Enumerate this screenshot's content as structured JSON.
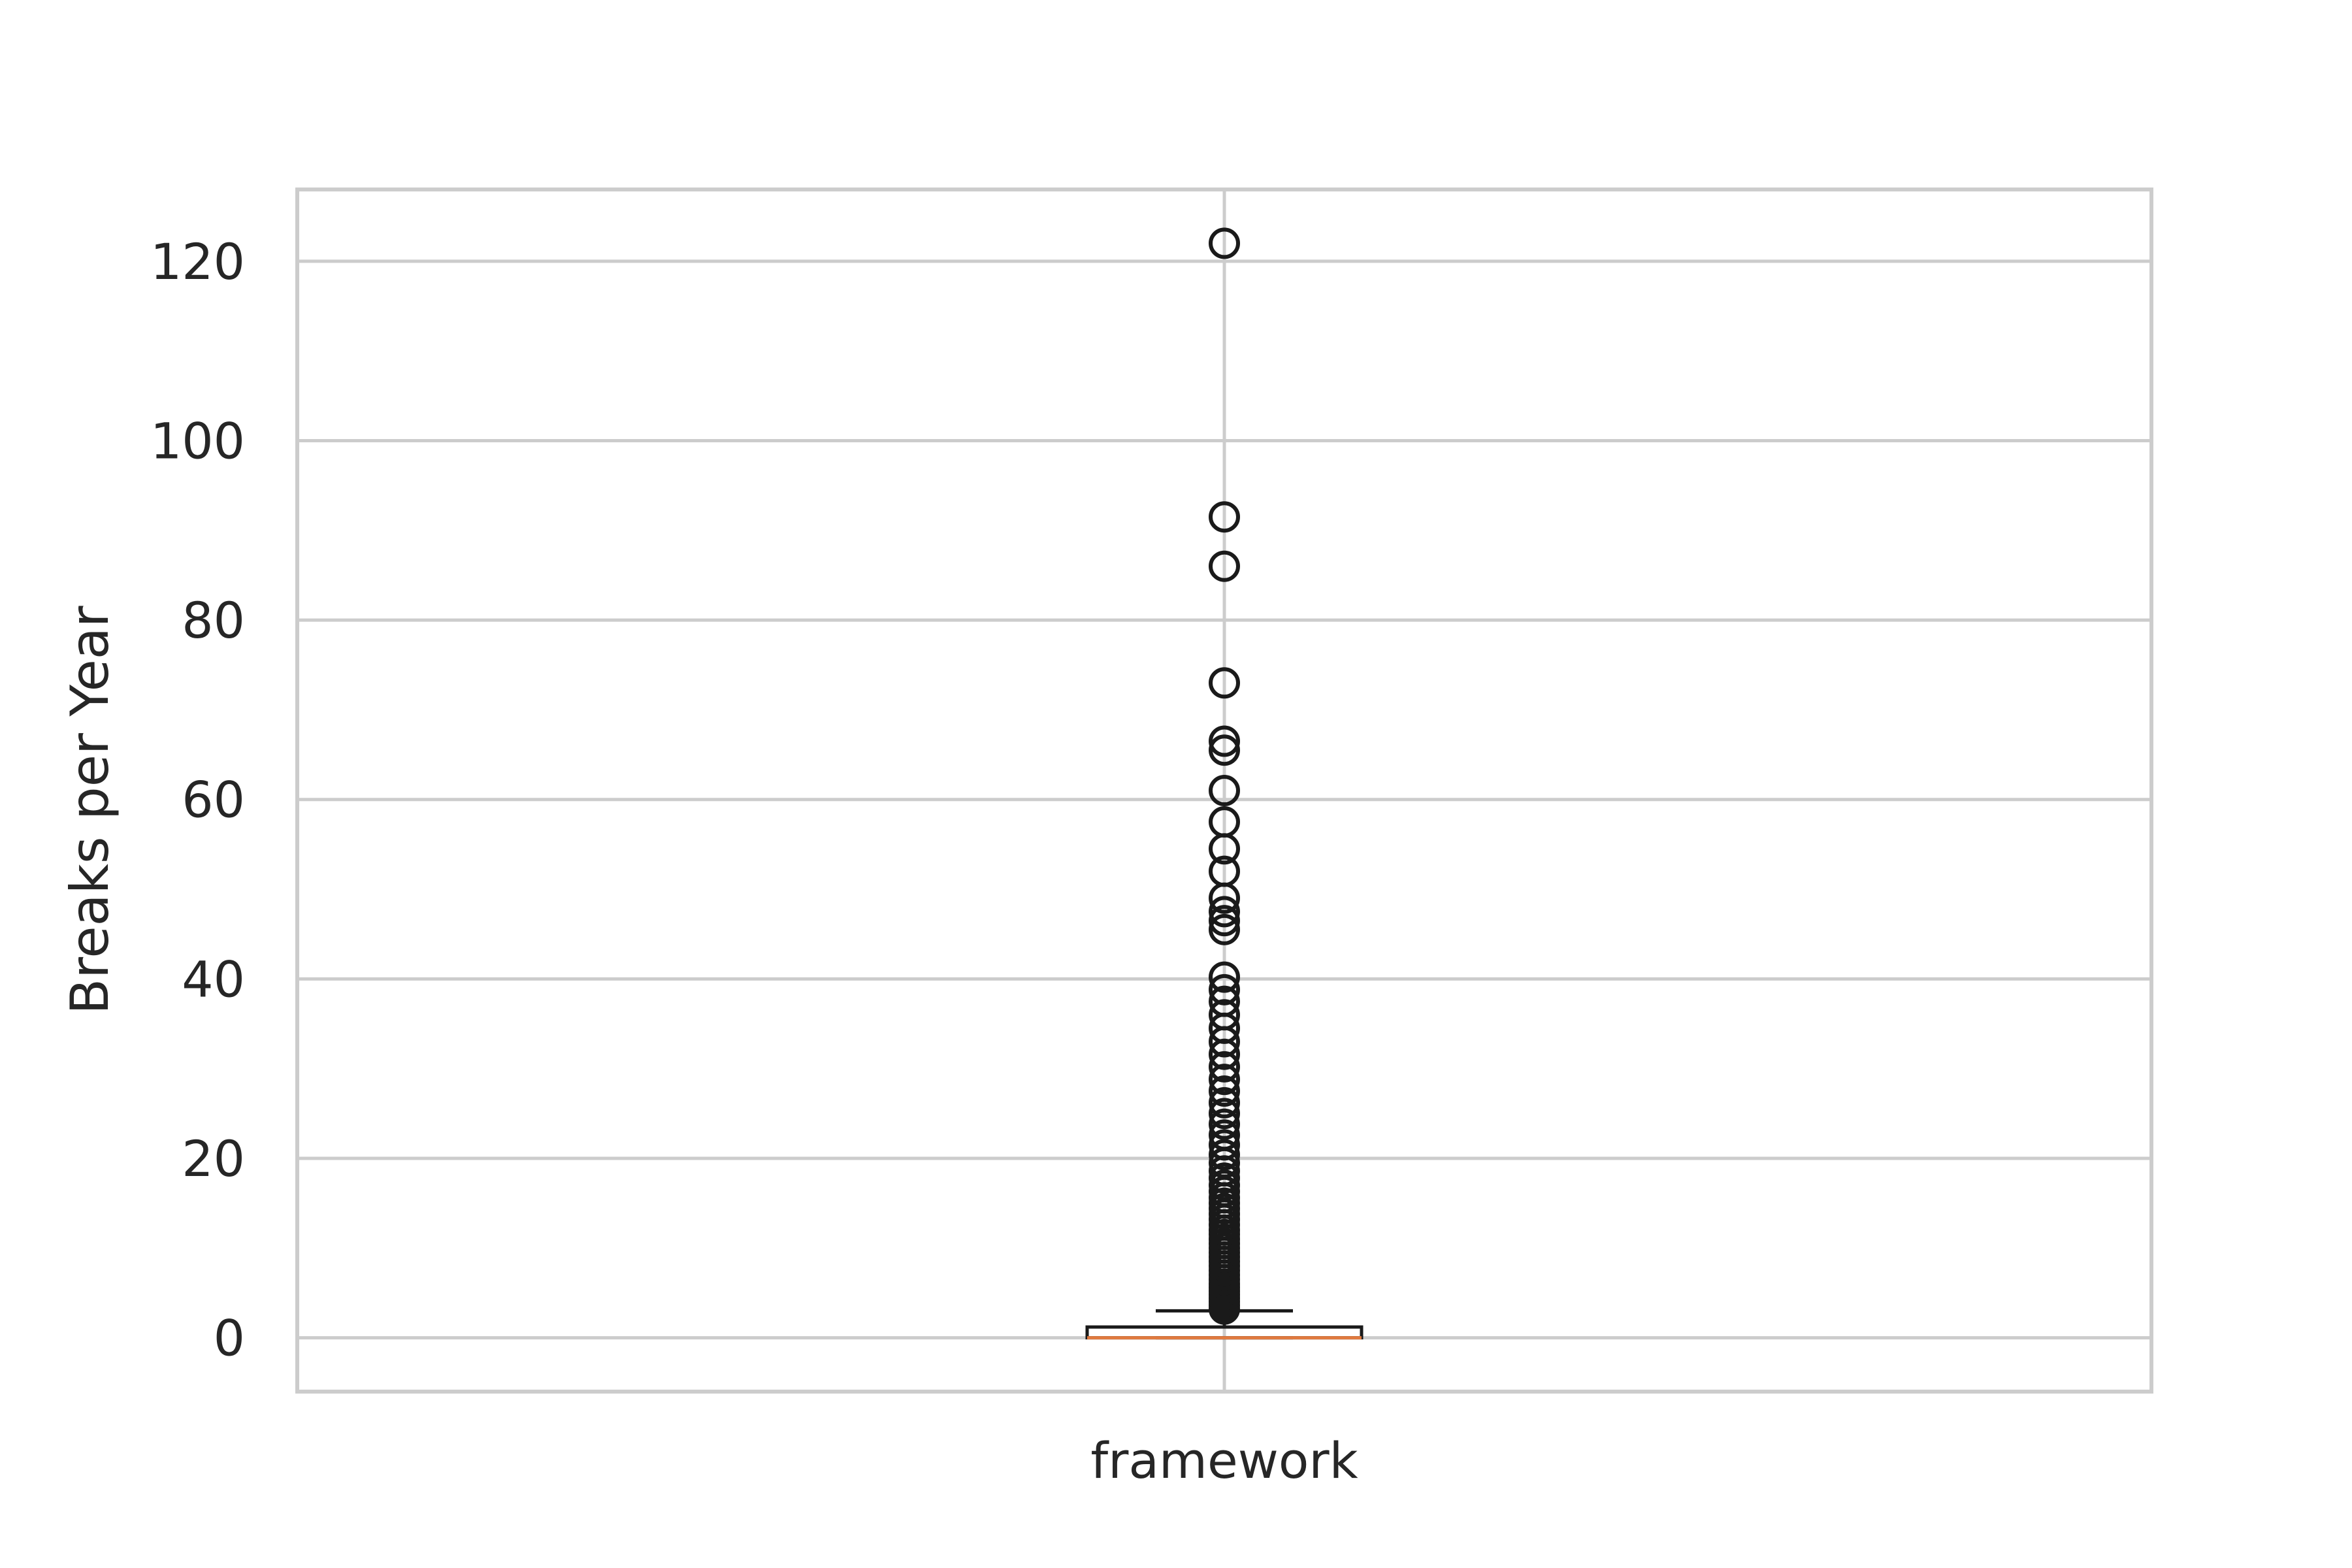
{
  "chart_data": {
    "type": "box",
    "title": "",
    "xlabel": "",
    "ylabel": "Breaks per Year",
    "categories": [
      "framework"
    ],
    "ylim": [
      -6,
      128
    ],
    "yticks": [
      0,
      20,
      40,
      60,
      80,
      100,
      120
    ],
    "ytick_labels": [
      "0",
      "20",
      "40",
      "60",
      "80",
      "100",
      "120"
    ],
    "grid": true,
    "colors": {
      "grid": "#cccccc",
      "frame": "#cccccc",
      "box": "#1a1a1a",
      "median": "#e07a3f",
      "flier": "#1a1a1a",
      "text": "#262626"
    },
    "series": [
      {
        "category": "framework",
        "box": {
          "whisker_low": 0,
          "q1": 0,
          "median": 0,
          "q3": 1.2,
          "whisker_high": 3
        },
        "outliers": [
          3.2,
          3.6,
          4.0,
          4.4,
          4.8,
          5.2,
          5.6,
          6.0,
          6.5,
          7.0,
          7.5,
          8.0,
          8.5,
          9.0,
          9.5,
          10.0,
          10.5,
          11.0,
          11.5,
          12.0,
          12.6,
          13.2,
          13.8,
          14.4,
          15.0,
          15.6,
          16.3,
          17.0,
          17.8,
          18.6,
          19.5,
          20.4,
          21.5,
          22.6,
          23.8,
          25.0,
          26.2,
          27.5,
          28.8,
          30.2,
          31.6,
          33.0,
          34.5,
          36.0,
          37.5,
          38.8,
          40.2,
          45.5,
          46.5,
          47.5,
          49.0,
          52.0,
          54.5,
          57.5,
          61.0,
          65.5,
          66.5,
          73.0,
          86.0,
          91.5,
          122.0
        ]
      }
    ]
  }
}
